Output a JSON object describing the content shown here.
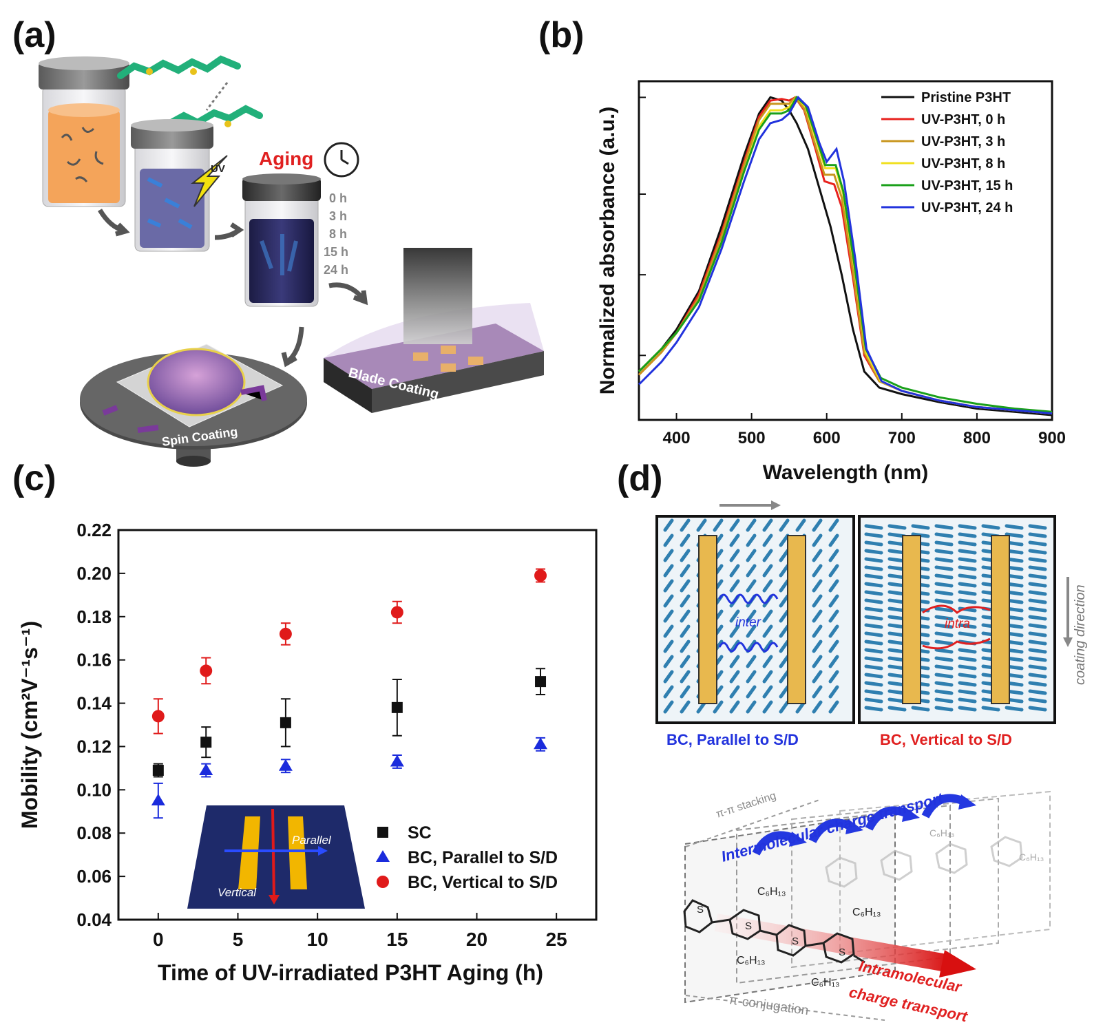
{
  "panels": {
    "a": {
      "label": "(a)",
      "aging_title": "Aging",
      "uv_label": "UV",
      "aging_times": [
        "0 h",
        "3 h",
        "8 h",
        "15 h",
        "24 h"
      ],
      "blade_coating_label": "Blade Coating",
      "spin_coating_label": "Spin Coating"
    },
    "b": {
      "label": "(b)"
    },
    "c": {
      "label": "(c)"
    },
    "d": {
      "label": "(d)",
      "parallel_caption": "BC, Parallel to S/D",
      "vertical_caption": "BC, Vertical to S/D",
      "inter_label": "inter",
      "intra_label": "intra",
      "coating_direction_label": "coating direction",
      "stacking_label": "π-π stacking",
      "inter_transport_label": "Intermolecular charge transport",
      "conjugation_label": "π-conjugation",
      "intra_transport_line1": "Intramolecular",
      "intra_transport_line2": "charge transport",
      "side_chain_label": "C₆H₁₃",
      "sulfur_label": "S"
    }
  },
  "chart_data": [
    {
      "type": "line",
      "xlabel": "Wavelength (nm)",
      "ylabel": "Normalized absorbance (a.u.)",
      "xlim": [
        350,
        900
      ],
      "xticks": [
        400,
        500,
        600,
        700,
        800,
        900
      ],
      "ylim": [
        0,
        1.05
      ],
      "legend_position": "top-right",
      "colors": [
        "#111111",
        "#e8221e",
        "#c8961e",
        "#f0e020",
        "#1aa01a",
        "#2233dd"
      ],
      "series": [
        {
          "name": "Pristine P3HT",
          "points": [
            [
              350,
              0.15
            ],
            [
              380,
              0.22
            ],
            [
              400,
              0.28
            ],
            [
              430,
              0.4
            ],
            [
              460,
              0.6
            ],
            [
              490,
              0.82
            ],
            [
              510,
              0.95
            ],
            [
              525,
              1.0
            ],
            [
              540,
              0.99
            ],
            [
              550,
              0.96
            ],
            [
              560,
              0.92
            ],
            [
              575,
              0.84
            ],
            [
              590,
              0.72
            ],
            [
              605,
              0.6
            ],
            [
              620,
              0.45
            ],
            [
              635,
              0.28
            ],
            [
              650,
              0.15
            ],
            [
              670,
              0.1
            ],
            [
              700,
              0.08
            ],
            [
              750,
              0.055
            ],
            [
              800,
              0.035
            ],
            [
              850,
              0.025
            ],
            [
              900,
              0.015
            ]
          ]
        },
        {
          "name": "UV-P3HT, 0 h",
          "points": [
            [
              350,
              0.14
            ],
            [
              380,
              0.21
            ],
            [
              400,
              0.27
            ],
            [
              430,
              0.39
            ],
            [
              460,
              0.58
            ],
            [
              490,
              0.8
            ],
            [
              510,
              0.94
            ],
            [
              525,
              0.99
            ],
            [
              540,
              0.995
            ],
            [
              550,
              0.99
            ],
            [
              558,
              1.0
            ],
            [
              570,
              0.96
            ],
            [
              585,
              0.84
            ],
            [
              597,
              0.74
            ],
            [
              610,
              0.73
            ],
            [
              620,
              0.66
            ],
            [
              635,
              0.44
            ],
            [
              650,
              0.2
            ],
            [
              670,
              0.12
            ],
            [
              700,
              0.09
            ],
            [
              750,
              0.06
            ],
            [
              800,
              0.04
            ],
            [
              850,
              0.03
            ],
            [
              900,
              0.02
            ]
          ]
        },
        {
          "name": "UV-P3HT, 3 h",
          "points": [
            [
              350,
              0.14
            ],
            [
              380,
              0.21
            ],
            [
              400,
              0.27
            ],
            [
              430,
              0.38
            ],
            [
              460,
              0.57
            ],
            [
              490,
              0.79
            ],
            [
              510,
              0.93
            ],
            [
              525,
              0.98
            ],
            [
              540,
              0.98
            ],
            [
              550,
              0.98
            ],
            [
              558,
              1.0
            ],
            [
              570,
              0.965
            ],
            [
              585,
              0.85
            ],
            [
              597,
              0.76
            ],
            [
              610,
              0.76
            ],
            [
              620,
              0.69
            ],
            [
              635,
              0.46
            ],
            [
              650,
              0.21
            ],
            [
              670,
              0.12
            ],
            [
              700,
              0.09
            ],
            [
              750,
              0.06
            ],
            [
              800,
              0.04
            ],
            [
              850,
              0.03
            ],
            [
              900,
              0.02
            ]
          ]
        },
        {
          "name": "UV-P3HT, 8 h",
          "points": [
            [
              350,
              0.15
            ],
            [
              380,
              0.22
            ],
            [
              400,
              0.27
            ],
            [
              430,
              0.37
            ],
            [
              460,
              0.55
            ],
            [
              490,
              0.77
            ],
            [
              510,
              0.91
            ],
            [
              525,
              0.96
            ],
            [
              540,
              0.96
            ],
            [
              550,
              0.97
            ],
            [
              560,
              1.0
            ],
            [
              572,
              0.97
            ],
            [
              587,
              0.86
            ],
            [
              598,
              0.78
            ],
            [
              612,
              0.78
            ],
            [
              622,
              0.7
            ],
            [
              637,
              0.47
            ],
            [
              652,
              0.21
            ],
            [
              672,
              0.12
            ],
            [
              700,
              0.09
            ],
            [
              750,
              0.06
            ],
            [
              800,
              0.04
            ],
            [
              850,
              0.03
            ],
            [
              900,
              0.02
            ]
          ]
        },
        {
          "name": "UV-P3HT, 15 h",
          "points": [
            [
              350,
              0.15
            ],
            [
              380,
              0.22
            ],
            [
              400,
              0.27
            ],
            [
              430,
              0.37
            ],
            [
              460,
              0.55
            ],
            [
              490,
              0.77
            ],
            [
              510,
              0.9
            ],
            [
              525,
              0.95
            ],
            [
              540,
              0.95
            ],
            [
              550,
              0.96
            ],
            [
              560,
              1.0
            ],
            [
              572,
              0.975
            ],
            [
              587,
              0.87
            ],
            [
              598,
              0.79
            ],
            [
              612,
              0.79
            ],
            [
              622,
              0.71
            ],
            [
              637,
              0.48
            ],
            [
              652,
              0.22
            ],
            [
              672,
              0.13
            ],
            [
              700,
              0.1
            ],
            [
              750,
              0.07
            ],
            [
              800,
              0.05
            ],
            [
              850,
              0.035
            ],
            [
              900,
              0.025
            ]
          ]
        },
        {
          "name": "UV-P3HT, 24 h",
          "points": [
            [
              350,
              0.11
            ],
            [
              380,
              0.18
            ],
            [
              400,
              0.24
            ],
            [
              430,
              0.35
            ],
            [
              460,
              0.53
            ],
            [
              490,
              0.74
            ],
            [
              510,
              0.87
            ],
            [
              525,
              0.92
            ],
            [
              540,
              0.93
            ],
            [
              550,
              0.95
            ],
            [
              562,
              1.0
            ],
            [
              575,
              0.97
            ],
            [
              590,
              0.86
            ],
            [
              600,
              0.8
            ],
            [
              613,
              0.84
            ],
            [
              623,
              0.74
            ],
            [
              638,
              0.5
            ],
            [
              653,
              0.22
            ],
            [
              673,
              0.12
            ],
            [
              700,
              0.09
            ],
            [
              750,
              0.06
            ],
            [
              800,
              0.04
            ],
            [
              850,
              0.03
            ],
            [
              900,
              0.02
            ]
          ]
        }
      ]
    },
    {
      "type": "scatter",
      "xlabel": "Time of UV-irradiated P3HT Aging (h)",
      "ylabel": "Mobility (cm²V⁻¹s⁻¹)",
      "xlim": [
        -2.5,
        27.5
      ],
      "ylim": [
        0.04,
        0.22
      ],
      "xticks": [
        "0",
        "5",
        "10",
        "15",
        "20",
        "25"
      ],
      "yticks": [
        "0.04",
        "0.06",
        "0.08",
        "0.10",
        "0.12",
        "0.14",
        "0.16",
        "0.18",
        "0.20",
        "0.22"
      ],
      "legend_position": "bottom-right",
      "inset_labels": {
        "parallel": "Parallel",
        "vertical": "Vertical"
      },
      "series": [
        {
          "name": "SC",
          "marker": "square",
          "color": "#111111",
          "x": [
            0,
            3,
            8,
            15,
            24
          ],
          "y": [
            0.109,
            0.122,
            0.131,
            0.138,
            0.15
          ],
          "err": [
            0.003,
            0.007,
            0.011,
            0.013,
            0.006
          ]
        },
        {
          "name": "BC, Parallel to S/D",
          "marker": "triangle",
          "color": "#1a2bdc",
          "x": [
            0,
            3,
            8,
            15,
            24
          ],
          "y": [
            0.095,
            0.109,
            0.111,
            0.113,
            0.121
          ],
          "err": [
            0.008,
            0.003,
            0.003,
            0.003,
            0.003
          ]
        },
        {
          "name": "BC, Vertical to S/D",
          "marker": "circle",
          "color": "#e01a1a",
          "x": [
            0,
            3,
            8,
            15,
            24
          ],
          "y": [
            0.134,
            0.155,
            0.172,
            0.182,
            0.199
          ],
          "err": [
            0.008,
            0.006,
            0.005,
            0.005,
            0.003
          ]
        }
      ]
    }
  ]
}
